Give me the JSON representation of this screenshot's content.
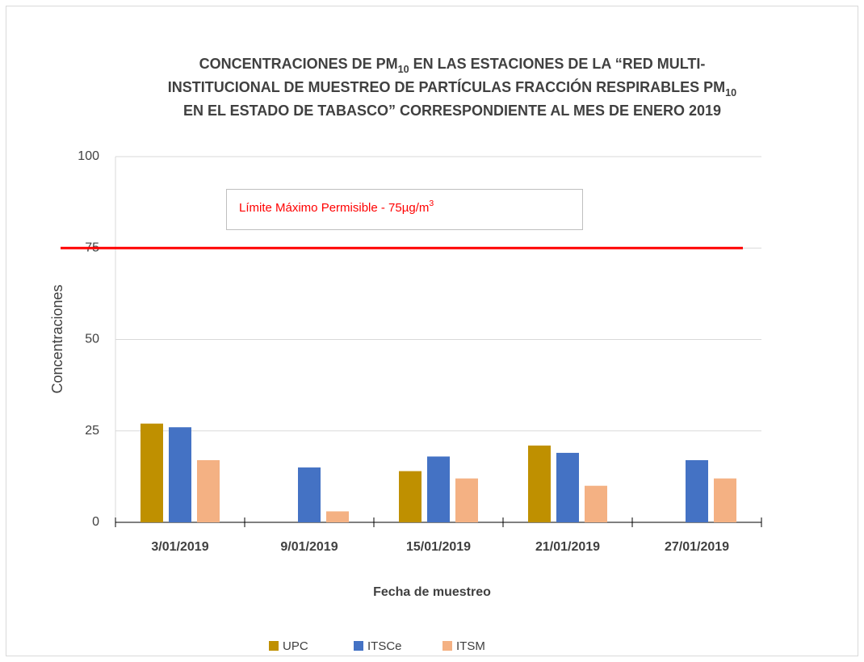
{
  "chart_data": {
    "type": "bar",
    "title": [
      "CONCENTRACIONES  DE PM10 EN LAS ESTACIONES DE LA “RED MULTI-",
      "INSTITUCIONAL DE MUESTREO DE PARTÍCULAS FRACCIÓN RESPIRABLES PM10",
      "EN EL ESTADO DE TABASCO” CORRESPONDIENTE AL MES DE ENERO 2019"
    ],
    "x_label": "Fecha de muestreo",
    "y_label": "Concentraciones",
    "categories": [
      "3/01/2019",
      "9/01/2019",
      "15/01/2019",
      "21/01/2019",
      "27/01/2019"
    ],
    "series": [
      {
        "name": "UPC",
        "color": "#bf9000",
        "values": [
          27,
          null,
          14,
          21,
          null
        ]
      },
      {
        "name": "ITSCe",
        "color": "#4472c4",
        "values": [
          26,
          15,
          18,
          19,
          17
        ]
      },
      {
        "name": "ITSM",
        "color": "#f4b183",
        "values": [
          17,
          3,
          12,
          10,
          12
        ]
      }
    ],
    "limit_line": {
      "value": 75,
      "label": "Límite Máximo Permisible - 75µg/m3",
      "color": "#ff0000"
    },
    "ylim": [
      0,
      100
    ],
    "yticks": [
      0,
      25,
      50,
      75,
      100
    ],
    "grid": true,
    "legend": "bottom"
  }
}
